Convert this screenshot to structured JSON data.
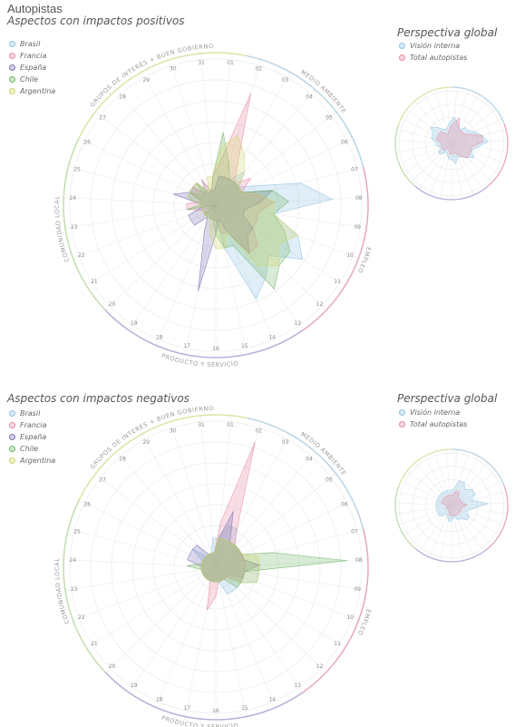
{
  "title": "Autopistas",
  "spoke_labels": [
    "01",
    "02",
    "03",
    "04",
    "05",
    "06",
    "07",
    "08",
    "09",
    "10",
    "11",
    "12",
    "13",
    "14",
    "15",
    "16",
    "17",
    "18",
    "19",
    "20",
    "21",
    "22",
    "23",
    "24",
    "25",
    "26",
    "27",
    "28",
    "29",
    "30",
    "31"
  ],
  "categories": [
    {
      "name": "MEDIO AMBIENTE",
      "color": "#b8d4e6"
    },
    {
      "name": "EMPLEO",
      "color": "#e6a8b8"
    },
    {
      "name": "PRODUCTO Y SERVICIO",
      "color": "#b8b0d8"
    },
    {
      "name": "COMUNIDAD LOCAL",
      "color": "#c4dcb0"
    },
    {
      "name": "GRUPOS DE INTERÉS + BUEN GOBIERNO",
      "color": "#dfe2a6"
    }
  ],
  "series_colors": {
    "Brasil": "#8fc3e3",
    "Francia": "#e98aa3",
    "España": "#7d73b6",
    "Chile": "#72b66c",
    "Argentina": "#cfd86a",
    "Visión interna": "#8fc3e3",
    "Total autopistas": "#e98aa3"
  },
  "chart_data": [
    {
      "type": "radar",
      "title": "Aspectos con impactos positivos",
      "categories": [
        "01",
        "02",
        "03",
        "04",
        "05",
        "06",
        "07",
        "08",
        "09",
        "10",
        "11",
        "12",
        "13",
        "14",
        "15",
        "16",
        "17",
        "18",
        "19",
        "20",
        "21",
        "22",
        "23",
        "24",
        "25",
        "26",
        "27",
        "28",
        "29",
        "30",
        "31"
      ],
      "rmax": 10,
      "series": [
        {
          "name": "Brasil",
          "values": [
            2,
            2,
            2,
            3,
            2,
            3,
            6,
            8,
            4,
            6,
            7,
            5,
            6,
            7,
            3,
            1,
            1,
            1,
            1,
            1,
            0,
            1,
            1,
            1,
            2,
            2,
            2,
            1,
            2,
            1,
            1
          ]
        },
        {
          "name": "Francia",
          "values": [
            3,
            8,
            3,
            2,
            3,
            2,
            3,
            4,
            3,
            3,
            3,
            4,
            4,
            2,
            2,
            1,
            1,
            1,
            0,
            1,
            1,
            1,
            2,
            2,
            1,
            2,
            2,
            1,
            2,
            1,
            2
          ]
        },
        {
          "name": "España",
          "values": [
            2,
            2,
            2,
            2,
            2,
            2,
            4,
            3,
            2,
            2,
            3,
            3,
            4,
            2,
            1,
            2,
            6,
            2,
            1,
            2,
            2,
            2,
            1,
            1,
            3,
            2,
            2,
            2,
            1,
            1,
            1
          ]
        },
        {
          "name": "Chile",
          "values": [
            5,
            3,
            2,
            2,
            2,
            2,
            4,
            5,
            4,
            5,
            6,
            6,
            7,
            3,
            3,
            2,
            1,
            1,
            1,
            1,
            1,
            0,
            2,
            1,
            1,
            2,
            1,
            2,
            1,
            1,
            2
          ]
        },
        {
          "name": "Argentina",
          "values": [
            4,
            5,
            4,
            3,
            2,
            2,
            3,
            4,
            4,
            6,
            5,
            6,
            5,
            2,
            3,
            3,
            2,
            1,
            1,
            1,
            1,
            1,
            1,
            1,
            2,
            2,
            2,
            2,
            1,
            2,
            2
          ]
        }
      ]
    },
    {
      "type": "radar",
      "title": "Perspectiva global",
      "categories": [
        "01",
        "02",
        "03",
        "04",
        "05",
        "06",
        "07",
        "08",
        "09",
        "10",
        "11",
        "12",
        "13",
        "14",
        "15",
        "16",
        "17",
        "18",
        "19",
        "20",
        "21",
        "22",
        "23",
        "24",
        "25",
        "26",
        "27",
        "28",
        "29",
        "30",
        "31"
      ],
      "rmax": 10,
      "series": [
        {
          "name": "Visión interna",
          "values": [
            5,
            4,
            3,
            4,
            4,
            5,
            6,
            7,
            5,
            4,
            5,
            4,
            3,
            3,
            4,
            3,
            3,
            2,
            2,
            3,
            3,
            2,
            3,
            3,
            4,
            4,
            5,
            4,
            3,
            3,
            4
          ]
        },
        {
          "name": "Total autopistas",
          "values": [
            4,
            5,
            3,
            3,
            3,
            4,
            6,
            6,
            4,
            4,
            4,
            4,
            3,
            2,
            2,
            2,
            2,
            1,
            1,
            2,
            2,
            2,
            2,
            2,
            3,
            3,
            3,
            3,
            2,
            2,
            3
          ]
        }
      ]
    },
    {
      "type": "radar",
      "title": "Aspectos con impactos negativos",
      "categories": [
        "01",
        "02",
        "03",
        "04",
        "05",
        "06",
        "07",
        "08",
        "09",
        "10",
        "11",
        "12",
        "13",
        "14",
        "15",
        "16",
        "17",
        "18",
        "19",
        "20",
        "21",
        "22",
        "23",
        "24",
        "25",
        "26",
        "27",
        "28",
        "29",
        "30",
        "31"
      ],
      "rmax": 10,
      "series": [
        {
          "name": "Brasil",
          "values": [
            2,
            3,
            3,
            2,
            2,
            2,
            2,
            3,
            3,
            3,
            2,
            2,
            2,
            2,
            1,
            1,
            1,
            1,
            1,
            1,
            1,
            1,
            1,
            1,
            1,
            1,
            2,
            1,
            1,
            1,
            2
          ]
        },
        {
          "name": "Francia",
          "values": [
            3,
            9,
            3,
            2,
            2,
            2,
            2,
            2,
            2,
            2,
            1,
            1,
            1,
            1,
            1,
            2,
            3,
            1,
            1,
            1,
            1,
            1,
            1,
            1,
            1,
            1,
            1,
            1,
            1,
            1,
            1
          ]
        },
        {
          "name": "España",
          "values": [
            2,
            4,
            2,
            2,
            2,
            2,
            2,
            3,
            2,
            2,
            2,
            1,
            1,
            1,
            1,
            1,
            1,
            1,
            1,
            1,
            1,
            1,
            1,
            1,
            2,
            2,
            2,
            2,
            1,
            1,
            1
          ]
        },
        {
          "name": "Chile",
          "values": [
            2,
            2,
            2,
            2,
            2,
            2,
            4,
            9,
            2,
            2,
            2,
            2,
            1,
            1,
            1,
            1,
            1,
            1,
            1,
            1,
            1,
            1,
            1,
            2,
            1,
            1,
            1,
            1,
            1,
            1,
            1
          ]
        },
        {
          "name": "Argentina",
          "values": [
            2,
            2,
            2,
            2,
            2,
            2,
            3,
            3,
            3,
            3,
            2,
            1,
            1,
            1,
            1,
            1,
            1,
            1,
            1,
            1,
            1,
            1,
            1,
            1,
            1,
            1,
            1,
            1,
            1,
            1,
            1
          ]
        }
      ]
    },
    {
      "type": "radar",
      "title": "Perspectiva global",
      "categories": [
        "01",
        "02",
        "03",
        "04",
        "05",
        "06",
        "07",
        "08",
        "09",
        "10",
        "11",
        "12",
        "13",
        "14",
        "15",
        "16",
        "17",
        "18",
        "19",
        "20",
        "21",
        "22",
        "23",
        "24",
        "25",
        "26",
        "27",
        "28",
        "29",
        "30",
        "31"
      ],
      "rmax": 10,
      "series": [
        {
          "name": "Visión interna",
          "values": [
            3,
            5,
            5,
            4,
            5,
            5,
            4,
            7,
            4,
            3,
            4,
            4,
            3,
            3,
            2,
            3,
            3,
            2,
            2,
            3,
            3,
            3,
            3,
            3,
            3,
            3,
            3,
            3,
            3,
            3,
            3
          ]
        },
        {
          "name": "Total autopistas",
          "values": [
            2,
            3,
            3,
            2,
            2,
            2,
            2,
            3,
            2,
            2,
            2,
            2,
            2,
            2,
            2,
            2,
            2,
            1,
            1,
            1,
            1,
            1,
            1,
            1,
            2,
            2,
            2,
            2,
            2,
            2,
            2
          ]
        }
      ]
    }
  ]
}
